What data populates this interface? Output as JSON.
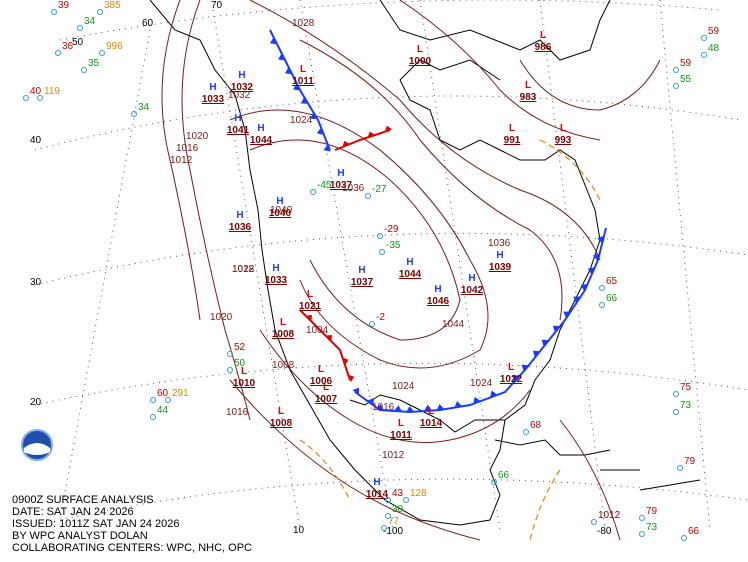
{
  "caption": [
    "0900Z SURFACE ANALYSIS",
    "DATE: SAT JAN 24 2026",
    "ISSUED: 1011Z SAT JAN 24 2026",
    "BY WPC ANALYST DOLAN",
    "COLLABORATING CENTERS: WPC, NHC, OPC"
  ],
  "latitude_labels": [
    "70",
    "60",
    "50",
    "40",
    "30",
    "20",
    "10"
  ],
  "longitude_labels": [
    "-100",
    "-80"
  ],
  "highs": [
    {
      "symbol": "H",
      "pressure": "1033"
    },
    {
      "symbol": "H",
      "pressure": "1032"
    },
    {
      "symbol": "H",
      "pressure": "1041"
    },
    {
      "symbol": "H",
      "pressure": "1044"
    },
    {
      "symbol": "H",
      "pressure": "1040"
    },
    {
      "symbol": "H",
      "pressure": "1036"
    },
    {
      "symbol": "H",
      "pressure": "1033"
    },
    {
      "symbol": "H",
      "pressure": "1037"
    },
    {
      "symbol": "H",
      "pressure": "1044"
    },
    {
      "symbol": "H",
      "pressure": "1046"
    },
    {
      "symbol": "H",
      "pressure": "1042"
    },
    {
      "symbol": "H",
      "pressure": "1039"
    },
    {
      "symbol": "H",
      "pressure": "1014"
    },
    {
      "symbol": "H",
      "pressure": "1037"
    }
  ],
  "lows": [
    {
      "symbol": "L",
      "pressure": "986"
    },
    {
      "symbol": "L",
      "pressure": "1000"
    },
    {
      "symbol": "L",
      "pressure": "983"
    },
    {
      "symbol": "L",
      "pressure": "993"
    },
    {
      "symbol": "L",
      "pressure": "991"
    },
    {
      "symbol": "L",
      "pressure": "1008"
    },
    {
      "symbol": "L",
      "pressure": "1007"
    },
    {
      "symbol": "L",
      "pressure": "1011"
    },
    {
      "symbol": "L",
      "pressure": "1014"
    },
    {
      "symbol": "L",
      "pressure": "1022"
    },
    {
      "symbol": "L",
      "pressure": "1008"
    },
    {
      "symbol": "L",
      "pressure": "1010"
    },
    {
      "symbol": "L",
      "pressure": "1006"
    },
    {
      "symbol": "L",
      "pressure": "1021"
    },
    {
      "symbol": "L",
      "pressure": "1011"
    }
  ],
  "isobar_labels": [
    "1028",
    "1020",
    "1016",
    "1012",
    "1024",
    "1032",
    "1036",
    "1040",
    "1012",
    "1016",
    "1020",
    "1028",
    "1024",
    "1044",
    "1036",
    "1024",
    "1008",
    "1004",
    "1016",
    "1012"
  ],
  "stations": [
    {
      "text": "39",
      "color": "#cc0000"
    },
    {
      "text": "385",
      "color": "#e08a00"
    },
    {
      "text": "34",
      "color": "#119911"
    },
    {
      "text": "36",
      "color": "#cc0000"
    },
    {
      "text": "996",
      "color": "#e08a00"
    },
    {
      "text": "35",
      "color": "#119911"
    },
    {
      "text": "40",
      "color": "#cc0000"
    },
    {
      "text": "119",
      "color": "#e08a00"
    },
    {
      "text": "34",
      "color": "#119911"
    },
    {
      "text": "59",
      "color": "#cc0000"
    },
    {
      "text": "48",
      "color": "#119911"
    },
    {
      "text": "59",
      "color": "#cc0000"
    },
    {
      "text": "55",
      "color": "#119911"
    },
    {
      "text": "60",
      "color": "#cc0000"
    },
    {
      "text": "291",
      "color": "#e08a00"
    },
    {
      "text": "44",
      "color": "#119911"
    },
    {
      "text": "75",
      "color": "#cc0000"
    },
    {
      "text": "73",
      "color": "#119911"
    },
    {
      "text": "79",
      "color": "#cc0000"
    },
    {
      "text": "79",
      "color": "#cc0000"
    },
    {
      "text": "73",
      "color": "#119911"
    },
    {
      "text": "66",
      "color": "#cc0000"
    },
    {
      "text": "68",
      "color": "#cc0000"
    },
    {
      "text": "66",
      "color": "#119911"
    },
    {
      "text": "-29",
      "color": "#cc0000"
    },
    {
      "text": "-35",
      "color": "#119911"
    },
    {
      "text": "-45",
      "color": "#119911"
    },
    {
      "text": "-27",
      "color": "#119911"
    },
    {
      "text": "-2",
      "color": "#cc0000"
    },
    {
      "text": "65",
      "color": "#cc0000"
    },
    {
      "text": "66",
      "color": "#119911"
    },
    {
      "text": "52",
      "color": "#cc0000"
    },
    {
      "text": "50",
      "color": "#119911"
    },
    {
      "text": "43",
      "color": "#cc0000"
    },
    {
      "text": "128",
      "color": "#e08a00"
    },
    {
      "text": "30",
      "color": "#119911"
    },
    {
      "text": "77",
      "color": "#e08a00"
    },
    {
      "text": "1012",
      "color": "#7a0000"
    }
  ]
}
